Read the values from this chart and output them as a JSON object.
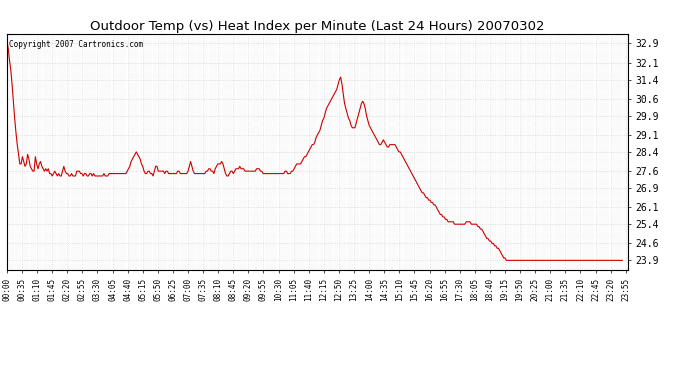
{
  "title": "Outdoor Temp (vs) Heat Index per Minute (Last 24 Hours) 20070302",
  "copyright_text": "Copyright 2007 Cartronics.com",
  "line_color": "#cc0000",
  "background_color": "#ffffff",
  "grid_color": "#cccccc",
  "yticks": [
    23.9,
    24.6,
    25.4,
    26.1,
    26.9,
    27.6,
    28.4,
    29.1,
    29.9,
    30.6,
    31.4,
    32.1,
    32.9
  ],
  "ylim": [
    23.5,
    33.3
  ],
  "xtick_step": 35,
  "xtick_labels": [
    "00:00",
    "00:35",
    "01:10",
    "01:45",
    "02:20",
    "02:55",
    "03:30",
    "04:05",
    "04:40",
    "05:15",
    "05:50",
    "06:25",
    "07:00",
    "07:35",
    "08:10",
    "08:45",
    "09:20",
    "09:55",
    "10:30",
    "11:05",
    "11:40",
    "12:15",
    "12:50",
    "13:25",
    "14:00",
    "14:35",
    "15:10",
    "15:45",
    "16:20",
    "16:55",
    "17:30",
    "18:05",
    "18:40",
    "19:15",
    "19:50",
    "20:25",
    "21:00",
    "21:35",
    "22:10",
    "22:45",
    "23:20",
    "23:55"
  ],
  "data_points": [
    [
      0,
      33.0
    ],
    [
      3,
      32.7
    ],
    [
      6,
      32.2
    ],
    [
      9,
      31.8
    ],
    [
      12,
      31.2
    ],
    [
      15,
      30.5
    ],
    [
      18,
      29.8
    ],
    [
      21,
      29.2
    ],
    [
      24,
      28.7
    ],
    [
      27,
      28.3
    ],
    [
      30,
      27.9
    ],
    [
      33,
      27.9
    ],
    [
      36,
      28.2
    ],
    [
      39,
      28.0
    ],
    [
      42,
      27.8
    ],
    [
      45,
      27.9
    ],
    [
      48,
      28.3
    ],
    [
      51,
      28.1
    ],
    [
      54,
      27.8
    ],
    [
      57,
      27.7
    ],
    [
      60,
      27.6
    ],
    [
      63,
      27.6
    ],
    [
      66,
      28.2
    ],
    [
      69,
      27.9
    ],
    [
      72,
      27.7
    ],
    [
      75,
      27.9
    ],
    [
      78,
      28.0
    ],
    [
      81,
      27.8
    ],
    [
      84,
      27.7
    ],
    [
      87,
      27.6
    ],
    [
      90,
      27.7
    ],
    [
      93,
      27.6
    ],
    [
      96,
      27.7
    ],
    [
      99,
      27.5
    ],
    [
      102,
      27.5
    ],
    [
      105,
      27.4
    ],
    [
      108,
      27.5
    ],
    [
      111,
      27.6
    ],
    [
      114,
      27.5
    ],
    [
      117,
      27.4
    ],
    [
      120,
      27.5
    ],
    [
      123,
      27.4
    ],
    [
      126,
      27.4
    ],
    [
      129,
      27.6
    ],
    [
      132,
      27.8
    ],
    [
      135,
      27.6
    ],
    [
      138,
      27.5
    ],
    [
      141,
      27.5
    ],
    [
      144,
      27.4
    ],
    [
      147,
      27.4
    ],
    [
      150,
      27.5
    ],
    [
      153,
      27.4
    ],
    [
      156,
      27.4
    ],
    [
      159,
      27.4
    ],
    [
      162,
      27.6
    ],
    [
      165,
      27.6
    ],
    [
      168,
      27.6
    ],
    [
      171,
      27.5
    ],
    [
      174,
      27.5
    ],
    [
      177,
      27.4
    ],
    [
      180,
      27.5
    ],
    [
      183,
      27.5
    ],
    [
      186,
      27.4
    ],
    [
      189,
      27.4
    ],
    [
      192,
      27.5
    ],
    [
      195,
      27.5
    ],
    [
      198,
      27.4
    ],
    [
      201,
      27.5
    ],
    [
      204,
      27.4
    ],
    [
      207,
      27.4
    ],
    [
      210,
      27.4
    ],
    [
      213,
      27.4
    ],
    [
      216,
      27.4
    ],
    [
      219,
      27.4
    ],
    [
      222,
      27.4
    ],
    [
      225,
      27.5
    ],
    [
      228,
      27.4
    ],
    [
      231,
      27.4
    ],
    [
      234,
      27.4
    ],
    [
      237,
      27.5
    ],
    [
      240,
      27.5
    ],
    [
      243,
      27.5
    ],
    [
      246,
      27.5
    ],
    [
      249,
      27.5
    ],
    [
      252,
      27.5
    ],
    [
      255,
      27.5
    ],
    [
      258,
      27.5
    ],
    [
      261,
      27.5
    ],
    [
      264,
      27.5
    ],
    [
      267,
      27.5
    ],
    [
      270,
      27.5
    ],
    [
      273,
      27.5
    ],
    [
      276,
      27.5
    ],
    [
      279,
      27.6
    ],
    [
      282,
      27.7
    ],
    [
      285,
      27.8
    ],
    [
      288,
      28.0
    ],
    [
      291,
      28.1
    ],
    [
      294,
      28.2
    ],
    [
      297,
      28.3
    ],
    [
      300,
      28.4
    ],
    [
      303,
      28.3
    ],
    [
      306,
      28.2
    ],
    [
      309,
      28.1
    ],
    [
      312,
      27.9
    ],
    [
      315,
      27.8
    ],
    [
      318,
      27.6
    ],
    [
      321,
      27.5
    ],
    [
      324,
      27.5
    ],
    [
      327,
      27.6
    ],
    [
      330,
      27.6
    ],
    [
      333,
      27.5
    ],
    [
      336,
      27.5
    ],
    [
      339,
      27.4
    ],
    [
      342,
      27.6
    ],
    [
      345,
      27.8
    ],
    [
      348,
      27.8
    ],
    [
      351,
      27.6
    ],
    [
      354,
      27.6
    ],
    [
      357,
      27.6
    ],
    [
      360,
      27.6
    ],
    [
      363,
      27.6
    ],
    [
      366,
      27.5
    ],
    [
      369,
      27.6
    ],
    [
      372,
      27.6
    ],
    [
      375,
      27.5
    ],
    [
      378,
      27.5
    ],
    [
      381,
      27.5
    ],
    [
      384,
      27.5
    ],
    [
      387,
      27.5
    ],
    [
      390,
      27.5
    ],
    [
      393,
      27.5
    ],
    [
      396,
      27.6
    ],
    [
      399,
      27.6
    ],
    [
      402,
      27.5
    ],
    [
      405,
      27.5
    ],
    [
      408,
      27.5
    ],
    [
      411,
      27.5
    ],
    [
      414,
      27.5
    ],
    [
      417,
      27.5
    ],
    [
      420,
      27.6
    ],
    [
      423,
      27.8
    ],
    [
      426,
      28.0
    ],
    [
      429,
      27.8
    ],
    [
      432,
      27.6
    ],
    [
      435,
      27.5
    ],
    [
      438,
      27.5
    ],
    [
      441,
      27.5
    ],
    [
      444,
      27.5
    ],
    [
      447,
      27.5
    ],
    [
      450,
      27.5
    ],
    [
      453,
      27.5
    ],
    [
      456,
      27.5
    ],
    [
      459,
      27.5
    ],
    [
      462,
      27.6
    ],
    [
      465,
      27.6
    ],
    [
      468,
      27.7
    ],
    [
      471,
      27.7
    ],
    [
      474,
      27.6
    ],
    [
      477,
      27.6
    ],
    [
      480,
      27.5
    ],
    [
      483,
      27.7
    ],
    [
      486,
      27.8
    ],
    [
      489,
      27.9
    ],
    [
      492,
      27.9
    ],
    [
      495,
      27.9
    ],
    [
      498,
      28.0
    ],
    [
      501,
      27.9
    ],
    [
      504,
      27.7
    ],
    [
      507,
      27.5
    ],
    [
      510,
      27.4
    ],
    [
      513,
      27.4
    ],
    [
      516,
      27.5
    ],
    [
      519,
      27.6
    ],
    [
      522,
      27.6
    ],
    [
      525,
      27.5
    ],
    [
      528,
      27.6
    ],
    [
      531,
      27.7
    ],
    [
      534,
      27.7
    ],
    [
      537,
      27.7
    ],
    [
      540,
      27.8
    ],
    [
      543,
      27.7
    ],
    [
      546,
      27.7
    ],
    [
      549,
      27.7
    ],
    [
      552,
      27.6
    ],
    [
      555,
      27.6
    ],
    [
      558,
      27.6
    ],
    [
      561,
      27.6
    ],
    [
      564,
      27.6
    ],
    [
      567,
      27.6
    ],
    [
      570,
      27.6
    ],
    [
      573,
      27.6
    ],
    [
      576,
      27.6
    ],
    [
      579,
      27.7
    ],
    [
      582,
      27.7
    ],
    [
      585,
      27.7
    ],
    [
      588,
      27.6
    ],
    [
      591,
      27.6
    ],
    [
      594,
      27.5
    ],
    [
      597,
      27.5
    ],
    [
      600,
      27.5
    ],
    [
      603,
      27.5
    ],
    [
      606,
      27.5
    ],
    [
      609,
      27.5
    ],
    [
      612,
      27.5
    ],
    [
      615,
      27.5
    ],
    [
      618,
      27.5
    ],
    [
      621,
      27.5
    ],
    [
      624,
      27.5
    ],
    [
      627,
      27.5
    ],
    [
      630,
      27.5
    ],
    [
      633,
      27.5
    ],
    [
      636,
      27.5
    ],
    [
      639,
      27.5
    ],
    [
      642,
      27.5
    ],
    [
      645,
      27.6
    ],
    [
      648,
      27.6
    ],
    [
      651,
      27.5
    ],
    [
      654,
      27.5
    ],
    [
      657,
      27.5
    ],
    [
      660,
      27.6
    ],
    [
      663,
      27.6
    ],
    [
      666,
      27.7
    ],
    [
      669,
      27.8
    ],
    [
      672,
      27.9
    ],
    [
      675,
      27.9
    ],
    [
      678,
      27.9
    ],
    [
      681,
      27.9
    ],
    [
      684,
      28.0
    ],
    [
      687,
      28.1
    ],
    [
      690,
      28.2
    ],
    [
      693,
      28.2
    ],
    [
      696,
      28.3
    ],
    [
      699,
      28.4
    ],
    [
      702,
      28.5
    ],
    [
      705,
      28.6
    ],
    [
      708,
      28.7
    ],
    [
      711,
      28.7
    ],
    [
      714,
      28.8
    ],
    [
      717,
      29.0
    ],
    [
      720,
      29.1
    ],
    [
      723,
      29.2
    ],
    [
      726,
      29.3
    ],
    [
      729,
      29.5
    ],
    [
      732,
      29.7
    ],
    [
      735,
      29.8
    ],
    [
      738,
      30.0
    ],
    [
      741,
      30.2
    ],
    [
      744,
      30.3
    ],
    [
      747,
      30.4
    ],
    [
      750,
      30.5
    ],
    [
      753,
      30.6
    ],
    [
      756,
      30.7
    ],
    [
      759,
      30.8
    ],
    [
      762,
      30.9
    ],
    [
      765,
      31.0
    ],
    [
      768,
      31.2
    ],
    [
      771,
      31.4
    ],
    [
      774,
      31.5
    ],
    [
      777,
      31.2
    ],
    [
      780,
      30.8
    ],
    [
      783,
      30.4
    ],
    [
      786,
      30.2
    ],
    [
      789,
      30.0
    ],
    [
      792,
      29.8
    ],
    [
      795,
      29.7
    ],
    [
      798,
      29.5
    ],
    [
      801,
      29.4
    ],
    [
      804,
      29.4
    ],
    [
      807,
      29.4
    ],
    [
      810,
      29.6
    ],
    [
      813,
      29.8
    ],
    [
      816,
      30.0
    ],
    [
      819,
      30.2
    ],
    [
      822,
      30.4
    ],
    [
      825,
      30.5
    ],
    [
      828,
      30.4
    ],
    [
      831,
      30.2
    ],
    [
      834,
      29.9
    ],
    [
      837,
      29.7
    ],
    [
      840,
      29.5
    ],
    [
      843,
      29.4
    ],
    [
      846,
      29.3
    ],
    [
      849,
      29.2
    ],
    [
      852,
      29.1
    ],
    [
      855,
      29.0
    ],
    [
      858,
      28.9
    ],
    [
      861,
      28.8
    ],
    [
      864,
      28.7
    ],
    [
      867,
      28.7
    ],
    [
      870,
      28.8
    ],
    [
      873,
      28.9
    ],
    [
      876,
      28.8
    ],
    [
      879,
      28.7
    ],
    [
      882,
      28.6
    ],
    [
      885,
      28.6
    ],
    [
      888,
      28.7
    ],
    [
      891,
      28.7
    ],
    [
      894,
      28.7
    ],
    [
      897,
      28.7
    ],
    [
      900,
      28.7
    ],
    [
      903,
      28.6
    ],
    [
      906,
      28.5
    ],
    [
      909,
      28.4
    ],
    [
      912,
      28.4
    ],
    [
      915,
      28.3
    ],
    [
      918,
      28.2
    ],
    [
      921,
      28.1
    ],
    [
      924,
      28.0
    ],
    [
      927,
      27.9
    ],
    [
      930,
      27.8
    ],
    [
      933,
      27.7
    ],
    [
      936,
      27.6
    ],
    [
      939,
      27.5
    ],
    [
      942,
      27.4
    ],
    [
      945,
      27.3
    ],
    [
      948,
      27.2
    ],
    [
      951,
      27.1
    ],
    [
      954,
      27.0
    ],
    [
      957,
      26.9
    ],
    [
      960,
      26.8
    ],
    [
      963,
      26.7
    ],
    [
      966,
      26.7
    ],
    [
      969,
      26.6
    ],
    [
      972,
      26.5
    ],
    [
      975,
      26.5
    ],
    [
      978,
      26.4
    ],
    [
      981,
      26.4
    ],
    [
      984,
      26.3
    ],
    [
      987,
      26.3
    ],
    [
      990,
      26.2
    ],
    [
      993,
      26.2
    ],
    [
      996,
      26.1
    ],
    [
      999,
      26.0
    ],
    [
      1002,
      25.9
    ],
    [
      1005,
      25.8
    ],
    [
      1008,
      25.8
    ],
    [
      1011,
      25.7
    ],
    [
      1014,
      25.7
    ],
    [
      1017,
      25.6
    ],
    [
      1020,
      25.6
    ],
    [
      1023,
      25.5
    ],
    [
      1026,
      25.5
    ],
    [
      1029,
      25.5
    ],
    [
      1032,
      25.5
    ],
    [
      1035,
      25.5
    ],
    [
      1038,
      25.4
    ],
    [
      1041,
      25.4
    ],
    [
      1044,
      25.4
    ],
    [
      1047,
      25.4
    ],
    [
      1050,
      25.4
    ],
    [
      1053,
      25.4
    ],
    [
      1056,
      25.4
    ],
    [
      1059,
      25.4
    ],
    [
      1062,
      25.4
    ],
    [
      1065,
      25.5
    ],
    [
      1068,
      25.5
    ],
    [
      1071,
      25.5
    ],
    [
      1074,
      25.5
    ],
    [
      1077,
      25.4
    ],
    [
      1080,
      25.4
    ],
    [
      1083,
      25.4
    ],
    [
      1086,
      25.4
    ],
    [
      1089,
      25.4
    ],
    [
      1092,
      25.3
    ],
    [
      1095,
      25.3
    ],
    [
      1098,
      25.2
    ],
    [
      1101,
      25.2
    ],
    [
      1104,
      25.1
    ],
    [
      1107,
      25.0
    ],
    [
      1110,
      24.9
    ],
    [
      1113,
      24.8
    ],
    [
      1116,
      24.8
    ],
    [
      1119,
      24.7
    ],
    [
      1122,
      24.7
    ],
    [
      1125,
      24.6
    ],
    [
      1128,
      24.6
    ],
    [
      1131,
      24.5
    ],
    [
      1134,
      24.5
    ],
    [
      1137,
      24.4
    ],
    [
      1140,
      24.4
    ],
    [
      1143,
      24.3
    ],
    [
      1146,
      24.2
    ],
    [
      1149,
      24.1
    ],
    [
      1152,
      24.0
    ],
    [
      1155,
      24.0
    ],
    [
      1158,
      23.9
    ],
    [
      1161,
      23.9
    ],
    [
      1164,
      23.9
    ],
    [
      1167,
      23.9
    ],
    [
      1170,
      23.9
    ],
    [
      1173,
      23.9
    ],
    [
      1176,
      23.9
    ],
    [
      1179,
      23.9
    ],
    [
      1182,
      23.9
    ],
    [
      1185,
      23.9
    ],
    [
      1188,
      23.9
    ],
    [
      1191,
      23.9
    ],
    [
      1194,
      23.9
    ],
    [
      1197,
      23.9
    ],
    [
      1200,
      23.9
    ],
    [
      1203,
      23.9
    ],
    [
      1206,
      23.9
    ],
    [
      1209,
      23.9
    ],
    [
      1212,
      23.9
    ],
    [
      1215,
      23.9
    ],
    [
      1218,
      23.9
    ],
    [
      1221,
      23.9
    ],
    [
      1224,
      23.9
    ],
    [
      1427,
      23.9
    ]
  ]
}
